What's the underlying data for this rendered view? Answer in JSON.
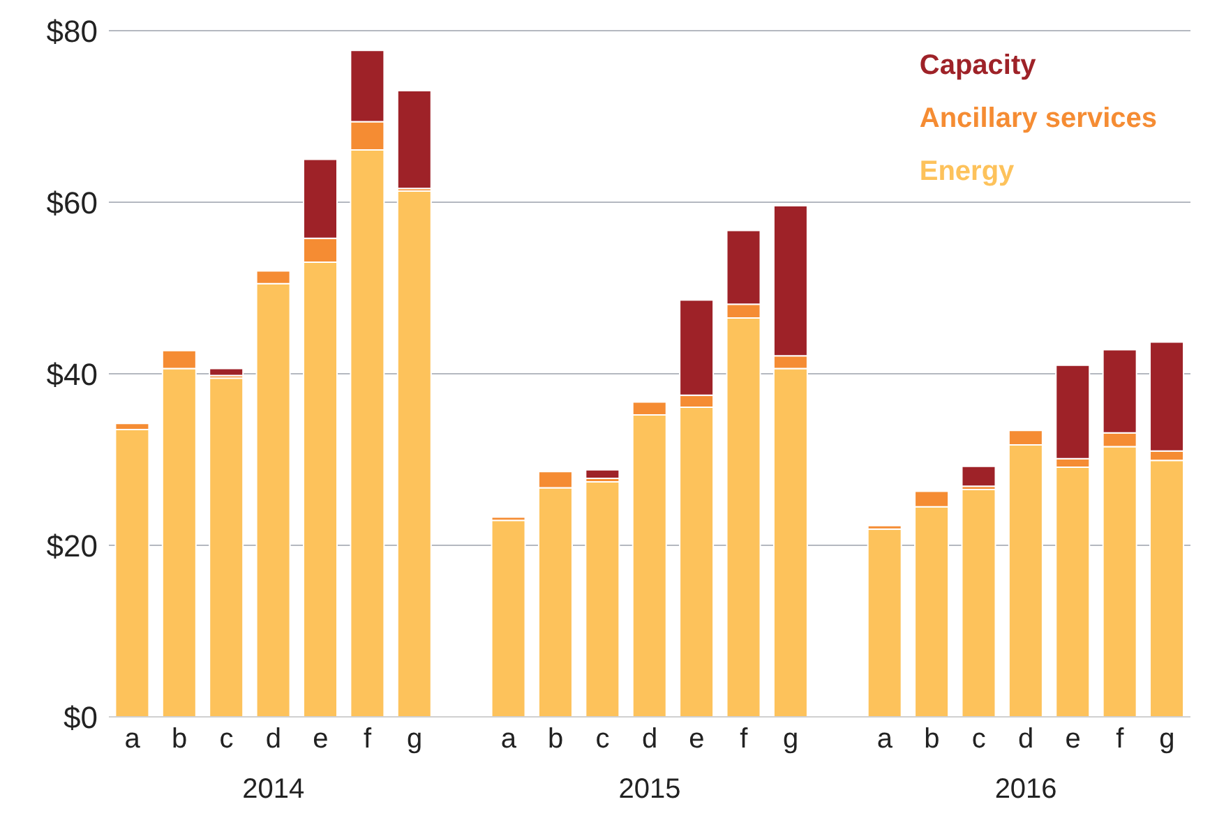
{
  "chart_data": {
    "type": "bar",
    "stacked": true,
    "categories": [
      "a",
      "b",
      "c",
      "d",
      "e",
      "f",
      "g",
      null,
      "a",
      "b",
      "c",
      "d",
      "e",
      "f",
      "g",
      null,
      "a",
      "b",
      "c",
      "d",
      "e",
      "f",
      "g"
    ],
    "series": [
      {
        "name": "Energy",
        "color": "#fdc25b",
        "values": [
          33.5,
          40.6,
          39.5,
          50.5,
          53.0,
          66.1,
          61.3,
          null,
          22.9,
          26.7,
          27.4,
          35.2,
          36.1,
          46.5,
          40.6,
          null,
          21.9,
          24.5,
          26.5,
          31.7,
          29.1,
          31.5,
          29.9
        ]
      },
      {
        "name": "Ancillary services",
        "color": "#f58c33",
        "values": [
          0.7,
          2.1,
          0.3,
          1.5,
          2.8,
          3.3,
          0.3,
          null,
          0.4,
          1.9,
          0.4,
          1.5,
          1.4,
          1.6,
          1.5,
          null,
          0.4,
          1.8,
          0.4,
          1.7,
          1.0,
          1.6,
          1.1
        ]
      },
      {
        "name": "Capacity",
        "color": "#9e2228",
        "values": [
          null,
          null,
          0.8,
          null,
          9.2,
          8.3,
          11.4,
          null,
          null,
          null,
          1.0,
          null,
          11.1,
          8.6,
          17.5,
          null,
          null,
          null,
          2.3,
          null,
          10.9,
          9.7,
          12.7
        ]
      }
    ],
    "annotations": [
      "2014",
      "2015",
      "2016"
    ],
    "ylim": [
      0,
      80
    ],
    "yticks": [
      {
        "value": 0,
        "label": "$0"
      },
      {
        "value": 20,
        "label": "$20"
      },
      {
        "value": 40,
        "label": "$40"
      },
      {
        "value": 60,
        "label": "$60"
      },
      {
        "value": 80,
        "label": "$80"
      }
    ],
    "grid": "y",
    "legend": "top right"
  }
}
